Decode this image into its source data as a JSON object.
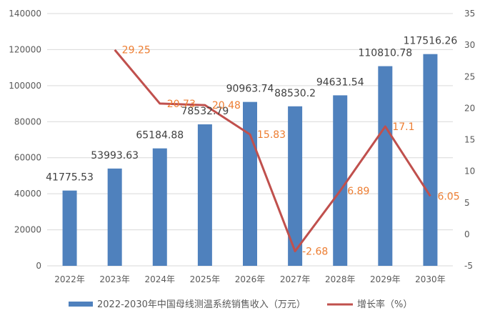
{
  "chart_data": {
    "type": "bar",
    "categories": [
      "2022年",
      "2023年",
      "2024年",
      "2025年",
      "2026年",
      "2027年",
      "2028年",
      "2029年",
      "2030年"
    ],
    "series": [
      {
        "name": "2022-2030年中国母线测温系统销售收入（万元）",
        "type": "bar",
        "axis": "left",
        "values": [
          41775.53,
          53993.63,
          65184.88,
          78532.79,
          90963.74,
          88530.2,
          94631.54,
          110810.78,
          117516.26
        ],
        "labels": [
          "41775.53",
          "53993.63",
          "65184.88",
          "78532.79",
          "90963.74",
          "88530.2",
          "94631.54",
          "110810.78",
          "117516.26"
        ],
        "color": "#4F81BD"
      },
      {
        "name": "增长率（%）",
        "type": "line",
        "axis": "right",
        "values": [
          null,
          29.25,
          20.73,
          20.48,
          15.83,
          -2.68,
          6.89,
          17.1,
          6.05
        ],
        "labels": [
          "",
          "29.25",
          "20.73",
          "20.48",
          "15.83",
          "-2.68",
          "6.89",
          "17.1",
          "6.05"
        ],
        "color": "#C0504D",
        "label_color": "#ED7D31"
      }
    ],
    "y_left": {
      "range": [
        0,
        140000
      ],
      "ticks": [
        "0",
        "20000",
        "40000",
        "60000",
        "80000",
        "100000",
        "120000",
        "140000"
      ]
    },
    "y_right": {
      "range": [
        -5,
        35
      ],
      "ticks": [
        "-5",
        "0",
        "5",
        "10",
        "15",
        "20",
        "25",
        "30",
        "35"
      ]
    },
    "grid": true,
    "legend": "bottom"
  }
}
